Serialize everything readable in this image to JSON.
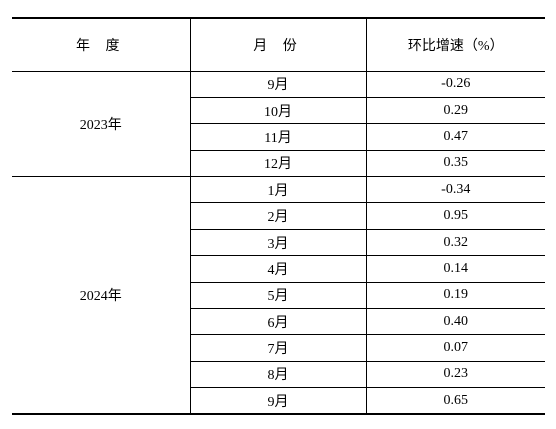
{
  "table": {
    "header": [
      "年 度",
      "月 份",
      "环比增速（%）"
    ],
    "groups": [
      {
        "year": "2023年",
        "rows": [
          [
            "9月",
            "-0.26"
          ],
          [
            "10月",
            "0.29"
          ],
          [
            "11月",
            "0.47"
          ],
          [
            "12月",
            "0.35"
          ]
        ]
      },
      {
        "year": "2024年",
        "rows": [
          [
            "1月",
            "-0.34"
          ],
          [
            "2月",
            "0.95"
          ],
          [
            "3月",
            "0.32"
          ],
          [
            "4月",
            "0.14"
          ],
          [
            "5月",
            "0.19"
          ],
          [
            "6月",
            "0.40"
          ],
          [
            "7月",
            "0.07"
          ],
          [
            "8月",
            "0.23"
          ],
          [
            "9月",
            "0.65"
          ]
        ]
      }
    ]
  }
}
